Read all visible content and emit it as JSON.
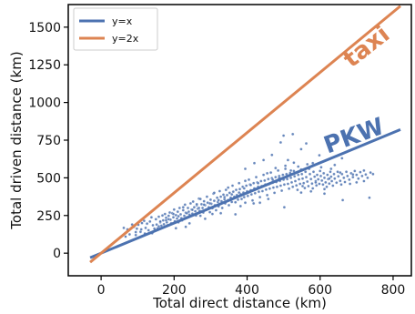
{
  "chart_data": {
    "type": "scatter",
    "title": "",
    "xlabel": "Total direct distance (km)",
    "ylabel": "Total driven distance (km)",
    "xlim": [
      -90,
      850
    ],
    "ylim": [
      -150,
      1650
    ],
    "xticks": [
      0,
      200,
      400,
      600,
      800
    ],
    "yticks": [
      0,
      250,
      500,
      750,
      1000,
      1250,
      1500
    ],
    "grid": false,
    "legend_position": "top-left",
    "lines": [
      {
        "name": "y=x",
        "slope": 1,
        "x_range": [
          -30,
          820
        ],
        "color": "#4c72b0"
      },
      {
        "name": "y=2x",
        "slope": 2,
        "x_range": [
          -30,
          820
        ],
        "color": "#dd8452"
      }
    ],
    "line_annotations": [
      {
        "text": "taxi",
        "color": "#dd8452",
        "x": 740,
        "y": 1330,
        "angle": -38
      },
      {
        "text": "PKW",
        "color": "#4c72b0",
        "x": 700,
        "y": 730,
        "angle": -20
      }
    ],
    "scatter_color": "#4c72b0",
    "scatter_points": [
      [
        62,
        168
      ],
      [
        67,
        110
      ],
      [
        72,
        158
      ],
      [
        78,
        125
      ],
      [
        85,
        190
      ],
      [
        90,
        175
      ],
      [
        95,
        120
      ],
      [
        98,
        162
      ],
      [
        102,
        188
      ],
      [
        108,
        142
      ],
      [
        112,
        200
      ],
      [
        118,
        215
      ],
      [
        122,
        168
      ],
      [
        126,
        196
      ],
      [
        130,
        152
      ],
      [
        134,
        210
      ],
      [
        138,
        238
      ],
      [
        142,
        185
      ],
      [
        146,
        162
      ],
      [
        150,
        225
      ],
      [
        152,
        190
      ],
      [
        155,
        165
      ],
      [
        158,
        242
      ],
      [
        162,
        205
      ],
      [
        165,
        182
      ],
      [
        168,
        250
      ],
      [
        170,
        218
      ],
      [
        172,
        192
      ],
      [
        175,
        260
      ],
      [
        178,
        235
      ],
      [
        180,
        205
      ],
      [
        182,
        185
      ],
      [
        185,
        248
      ],
      [
        188,
        270
      ],
      [
        190,
        222
      ],
      [
        192,
        198
      ],
      [
        195,
        265
      ],
      [
        198,
        238
      ],
      [
        200,
        290
      ],
      [
        202,
        212
      ],
      [
        205,
        252
      ],
      [
        208,
        230
      ],
      [
        210,
        275
      ],
      [
        212,
        205
      ],
      [
        215,
        300
      ],
      [
        218,
        258
      ],
      [
        220,
        232
      ],
      [
        222,
        218
      ],
      [
        225,
        285
      ],
      [
        228,
        248
      ],
      [
        230,
        322
      ],
      [
        232,
        268
      ],
      [
        235,
        238
      ],
      [
        238,
        300
      ],
      [
        240,
        275
      ],
      [
        242,
        255
      ],
      [
        245,
        330
      ],
      [
        248,
        290
      ],
      [
        250,
        262
      ],
      [
        252,
        342
      ],
      [
        255,
        305
      ],
      [
        258,
        278
      ],
      [
        260,
        250
      ],
      [
        262,
        318
      ],
      [
        265,
        295
      ],
      [
        268,
        362
      ],
      [
        270,
        280
      ],
      [
        272,
        248
      ],
      [
        275,
        325
      ],
      [
        278,
        300
      ],
      [
        280,
        270
      ],
      [
        282,
        345
      ],
      [
        285,
        318
      ],
      [
        288,
        290
      ],
      [
        290,
        375
      ],
      [
        292,
        335
      ],
      [
        295,
        305
      ],
      [
        298,
        272
      ],
      [
        300,
        355
      ],
      [
        302,
        328
      ],
      [
        305,
        298
      ],
      [
        308,
        395
      ],
      [
        310,
        348
      ],
      [
        312,
        318
      ],
      [
        315,
        285
      ],
      [
        318,
        368
      ],
      [
        320,
        340
      ],
      [
        322,
        310
      ],
      [
        325,
        412
      ],
      [
        328,
        375
      ],
      [
        330,
        345
      ],
      [
        332,
        300
      ],
      [
        335,
        388
      ],
      [
        338,
        358
      ],
      [
        340,
        330
      ],
      [
        342,
        420
      ],
      [
        345,
        385
      ],
      [
        348,
        352
      ],
      [
        350,
        318
      ],
      [
        352,
        400
      ],
      [
        355,
        368
      ],
      [
        358,
        340
      ],
      [
        360,
        448
      ],
      [
        362,
        408
      ],
      [
        365,
        375
      ],
      [
        368,
        338
      ],
      [
        370,
        420
      ],
      [
        372,
        385
      ],
      [
        375,
        355
      ],
      [
        378,
        465
      ],
      [
        380,
        425
      ],
      [
        382,
        392
      ],
      [
        385,
        360
      ],
      [
        388,
        440
      ],
      [
        390,
        402
      ],
      [
        392,
        372
      ],
      [
        395,
        335
      ],
      [
        398,
        448
      ],
      [
        400,
        410
      ],
      [
        402,
        380
      ],
      [
        405,
        488
      ],
      [
        408,
        455
      ],
      [
        410,
        418
      ],
      [
        412,
        390
      ],
      [
        415,
        350
      ],
      [
        418,
        465
      ],
      [
        420,
        430
      ],
      [
        422,
        398
      ],
      [
        425,
        505
      ],
      [
        428,
        470
      ],
      [
        430,
        440
      ],
      [
        432,
        408
      ],
      [
        435,
        372
      ],
      [
        438,
        478
      ],
      [
        440,
        445
      ],
      [
        442,
        412
      ],
      [
        445,
        520
      ],
      [
        448,
        482
      ],
      [
        450,
        455
      ],
      [
        452,
        422
      ],
      [
        455,
        385
      ],
      [
        458,
        492
      ],
      [
        460,
        458
      ],
      [
        462,
        428
      ],
      [
        465,
        535
      ],
      [
        468,
        498
      ],
      [
        470,
        468
      ],
      [
        472,
        435
      ],
      [
        475,
        400
      ],
      [
        478,
        505
      ],
      [
        480,
        472
      ],
      [
        482,
        440
      ],
      [
        485,
        548
      ],
      [
        488,
        512
      ],
      [
        490,
        480
      ],
      [
        492,
        448
      ],
      [
        495,
        415
      ],
      [
        498,
        520
      ],
      [
        500,
        488
      ],
      [
        502,
        455
      ],
      [
        505,
        560
      ],
      [
        508,
        525
      ],
      [
        510,
        492
      ],
      [
        512,
        460
      ],
      [
        515,
        428
      ],
      [
        518,
        532
      ],
      [
        520,
        500
      ],
      [
        522,
        470
      ],
      [
        525,
        440
      ],
      [
        528,
        545
      ],
      [
        530,
        510
      ],
      [
        532,
        478
      ],
      [
        535,
        450
      ],
      [
        538,
        420
      ],
      [
        540,
        520
      ],
      [
        542,
        490
      ],
      [
        545,
        460
      ],
      [
        548,
        555
      ],
      [
        550,
        525
      ],
      [
        552,
        495
      ],
      [
        555,
        465
      ],
      [
        558,
        432
      ],
      [
        560,
        540
      ],
      [
        562,
        505
      ],
      [
        565,
        475
      ],
      [
        568,
        445
      ],
      [
        570,
        560
      ],
      [
        572,
        525
      ],
      [
        575,
        492
      ],
      [
        578,
        462
      ],
      [
        580,
        430
      ],
      [
        582,
        540
      ],
      [
        585,
        508
      ],
      [
        588,
        478
      ],
      [
        590,
        450
      ],
      [
        592,
        520
      ],
      [
        595,
        490
      ],
      [
        598,
        460
      ],
      [
        600,
        545
      ],
      [
        602,
        512
      ],
      [
        605,
        482
      ],
      [
        608,
        455
      ],
      [
        610,
        530
      ],
      [
        612,
        500
      ],
      [
        615,
        470
      ],
      [
        618,
        440
      ],
      [
        620,
        520
      ],
      [
        622,
        492
      ],
      [
        625,
        462
      ],
      [
        628,
        540
      ],
      [
        630,
        508
      ],
      [
        632,
        478
      ],
      [
        635,
        448
      ],
      [
        638,
        525
      ],
      [
        640,
        495
      ],
      [
        645,
        468
      ],
      [
        648,
        540
      ],
      [
        650,
        510
      ],
      [
        655,
        480
      ],
      [
        658,
        455
      ],
      [
        660,
        525
      ],
      [
        665,
        500
      ],
      [
        668,
        472
      ],
      [
        672,
        540
      ],
      [
        675,
        512
      ],
      [
        680,
        488
      ],
      [
        685,
        530
      ],
      [
        690,
        505
      ],
      [
        695,
        545
      ],
      [
        700,
        520
      ],
      [
        705,
        495
      ],
      [
        710,
        538
      ],
      [
        715,
        512
      ],
      [
        720,
        548
      ],
      [
        725,
        522
      ],
      [
        730,
        500
      ],
      [
        738,
        535
      ],
      [
        745,
        525
      ],
      [
        500,
        780
      ],
      [
        525,
        790
      ],
      [
        562,
        728
      ],
      [
        492,
        735
      ],
      [
        548,
        690
      ],
      [
        598,
        650
      ],
      [
        468,
        652
      ],
      [
        445,
        618
      ],
      [
        420,
        598
      ],
      [
        395,
        560
      ],
      [
        512,
        618
      ],
      [
        580,
        598
      ],
      [
        640,
        585
      ],
      [
        660,
        630
      ],
      [
        612,
        395
      ],
      [
        662,
        352
      ],
      [
        735,
        368
      ],
      [
        502,
        305
      ],
      [
        435,
        335
      ],
      [
        368,
        258
      ],
      [
        382,
        312
      ],
      [
        285,
        228
      ],
      [
        242,
        198
      ],
      [
        205,
        165
      ],
      [
        232,
        175
      ],
      [
        140,
        132
      ],
      [
        305,
        260
      ],
      [
        328,
        265
      ],
      [
        418,
        330
      ],
      [
        458,
        360
      ],
      [
        548,
        402
      ],
      [
        575,
        410
      ],
      [
        612,
        425
      ],
      [
        682,
        460
      ],
      [
        700,
        470
      ],
      [
        720,
        478
      ],
      [
        455,
        530
      ],
      [
        505,
        580
      ],
      [
        528,
        600
      ],
      [
        478,
        565
      ],
      [
        395,
        480
      ],
      [
        348,
        435
      ],
      [
        310,
        400
      ],
      [
        272,
        360
      ],
      [
        262,
        325
      ],
      [
        225,
        305
      ],
      [
        198,
        260
      ],
      [
        178,
        218
      ],
      [
        158,
        178
      ],
      [
        120,
        130
      ],
      [
        552,
        445
      ],
      [
        588,
        470
      ],
      [
        625,
        495
      ],
      [
        655,
        535
      ],
      [
        690,
        522
      ],
      [
        520,
        548
      ],
      [
        540,
        575
      ],
      [
        565,
        590
      ],
      [
        603,
        570
      ],
      [
        630,
        560
      ],
      [
        392,
        430
      ],
      [
        410,
        452
      ],
      [
        430,
        465
      ],
      [
        470,
        488
      ],
      [
        488,
        500
      ],
      [
        322,
        352
      ],
      [
        338,
        372
      ],
      [
        358,
        390
      ],
      [
        378,
        402
      ],
      [
        298,
        330
      ],
      [
        250,
        288
      ],
      [
        268,
        300
      ],
      [
        282,
        322
      ],
      [
        212,
        245
      ],
      [
        235,
        265
      ],
      [
        162,
        210
      ],
      [
        185,
        225
      ],
      [
        110,
        158
      ],
      [
        95,
        140
      ]
    ]
  }
}
